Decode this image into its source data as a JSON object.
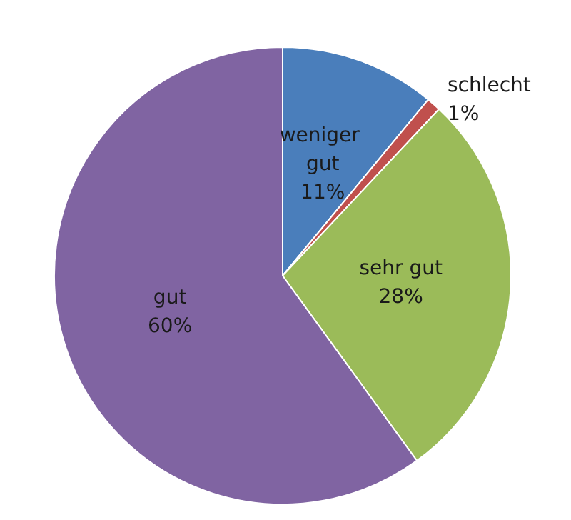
{
  "chart_data": {
    "type": "pie",
    "categories": [
      "weniger gut",
      "schlecht",
      "sehr gut",
      "gut"
    ],
    "values": [
      11,
      1,
      28,
      60
    ],
    "colors": [
      "#4a7ebb",
      "#c0504d",
      "#9bbb59",
      "#8064a2"
    ],
    "value_labels": [
      "11%",
      "1%",
      "28%",
      "60%"
    ]
  }
}
